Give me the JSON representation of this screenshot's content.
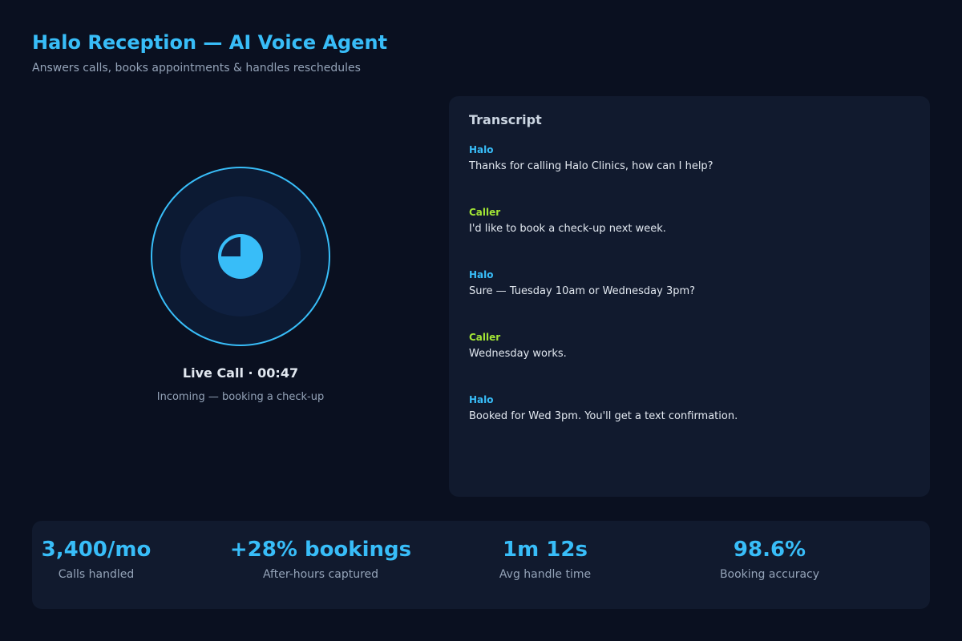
{
  "header": {
    "title": "Halo Reception — AI Voice Agent",
    "subtitle": "Answers calls, books appointments & handles reschedules"
  },
  "call": {
    "icon": "pie-icon",
    "accent": "#38bdf8",
    "status": "Live Call · 00:47",
    "detail": "Incoming — booking a check-up"
  },
  "transcript": {
    "title": "Transcript",
    "messages": [
      {
        "speaker": "Halo",
        "role": "agent",
        "text": "Thanks for calling Halo Clinics, how can I help?"
      },
      {
        "speaker": "Caller",
        "role": "caller",
        "text": "I'd like to book a check-up next week."
      },
      {
        "speaker": "Halo",
        "role": "agent",
        "text": "Sure — Tuesday 10am or Wednesday 3pm?"
      },
      {
        "speaker": "Caller",
        "role": "caller",
        "text": "Wednesday works."
      },
      {
        "speaker": "Halo",
        "role": "agent",
        "text": "Booked for Wed 3pm. You'll get a text confirmation."
      }
    ]
  },
  "colors": {
    "agent": "#38bdf8",
    "caller": "#a3e635",
    "background": "#0a1020",
    "panel": "#111a2e"
  },
  "stats": [
    {
      "value": "3,400/mo",
      "label": "Calls handled"
    },
    {
      "value": "+28% bookings",
      "label": "After-hours captured"
    },
    {
      "value": "1m 12s",
      "label": "Avg handle time"
    },
    {
      "value": "98.6%",
      "label": "Booking accuracy"
    }
  ]
}
